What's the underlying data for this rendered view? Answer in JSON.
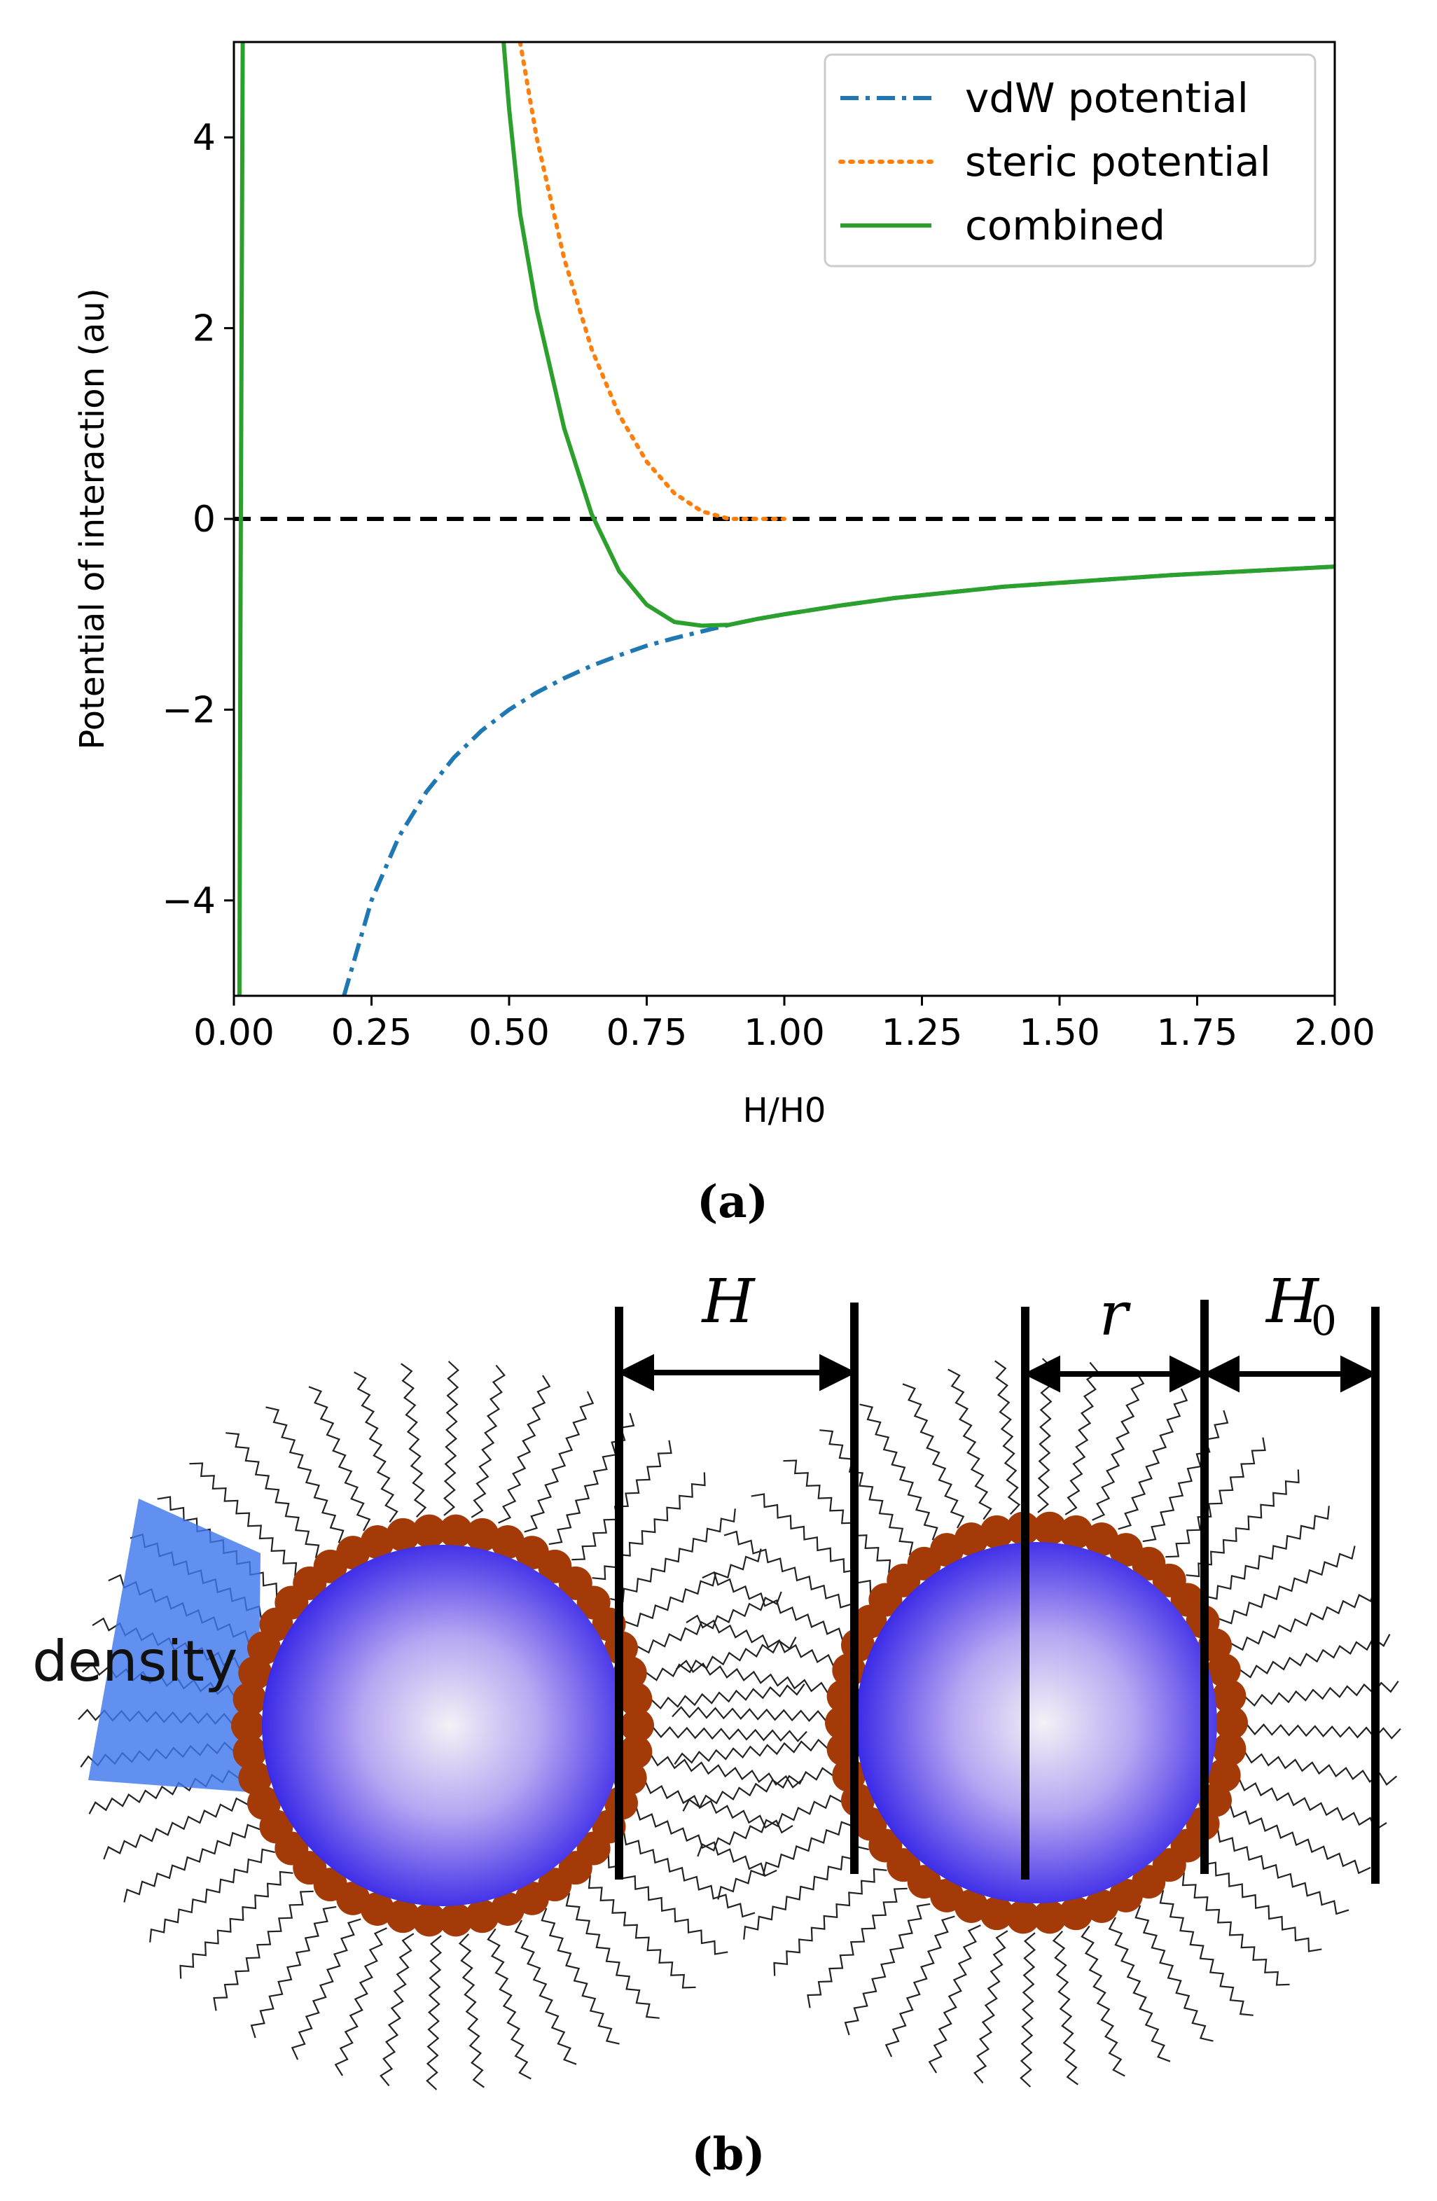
{
  "chart_data": {
    "type": "line",
    "xlabel": "H/H0",
    "ylabel": "Potential of interaction (au)",
    "xlim": [
      0.0,
      2.0
    ],
    "ylim": [
      -5,
      5
    ],
    "x_ticks": [
      "0.00",
      "0.25",
      "0.50",
      "0.75",
      "1.00",
      "1.25",
      "1.50",
      "1.75",
      "2.00"
    ],
    "y_ticks": [
      "−4",
      "−2",
      "0",
      "2",
      "4"
    ],
    "legend_position": "top-right",
    "grid": false,
    "reference_line": {
      "y": 0,
      "style": "dashed",
      "color": "#000000"
    },
    "series": [
      {
        "name": "vdW potential",
        "color": "#1f77b4",
        "style": "dashdot",
        "x": [
          0.2,
          0.25,
          0.3,
          0.35,
          0.4,
          0.45,
          0.5,
          0.55,
          0.6,
          0.65,
          0.7,
          0.75,
          0.8,
          0.85,
          0.9,
          0.95,
          1.0,
          1.1,
          1.2,
          1.3,
          1.4,
          1.5,
          1.6,
          1.7,
          1.8,
          1.9,
          2.0
        ],
        "values": [
          -5.0,
          -4.0,
          -3.33,
          -2.86,
          -2.5,
          -2.22,
          -2.0,
          -1.82,
          -1.67,
          -1.54,
          -1.43,
          -1.33,
          -1.25,
          -1.18,
          -1.11,
          -1.05,
          -1.0,
          -0.91,
          -0.83,
          -0.77,
          -0.71,
          -0.67,
          -0.63,
          -0.59,
          -0.56,
          -0.53,
          -0.5
        ]
      },
      {
        "name": "steric potential",
        "color": "#ff7f0e",
        "style": "dotted",
        "x": [
          0.52,
          0.55,
          0.6,
          0.65,
          0.7,
          0.75,
          0.8,
          0.85,
          0.9,
          0.95,
          1.0
        ],
        "values": [
          5.0,
          4.0,
          2.73,
          1.78,
          1.09,
          0.6,
          0.27,
          0.08,
          0.0,
          0.0,
          0.0
        ]
      },
      {
        "name": "combined",
        "color": "#2ca02c",
        "style": "solid",
        "x": [
          0.49,
          0.5,
          0.52,
          0.55,
          0.6,
          0.65,
          0.7,
          0.75,
          0.8,
          0.85,
          0.9,
          0.95,
          1.0,
          1.1,
          1.2,
          1.3,
          1.4,
          1.5,
          1.6,
          1.7,
          1.8,
          1.9,
          2.0
        ],
        "values": [
          5.0,
          4.3,
          3.2,
          2.2,
          0.95,
          0.05,
          -0.55,
          -0.9,
          -1.08,
          -1.12,
          -1.11,
          -1.05,
          -1.0,
          -0.91,
          -0.83,
          -0.77,
          -0.71,
          -0.67,
          -0.63,
          -0.59,
          -0.56,
          -0.53,
          -0.5
        ]
      },
      {
        "name": "combined (near-zero wall)",
        "legend": false,
        "color": "#2ca02c",
        "style": "solid",
        "x": [
          0.01,
          0.012,
          0.014,
          0.016
        ],
        "values": [
          -5.0,
          -1.0,
          2.0,
          5.0
        ]
      }
    ]
  },
  "captions": {
    "a": "(a)",
    "b": "(b)"
  },
  "schematic": {
    "labels": {
      "H": "H",
      "r": "r",
      "H0_main": "H",
      "H0_sub": "0",
      "density": "density"
    },
    "colors": {
      "particle_center": "#f4eef4",
      "particle_edge": "#2a1fe8",
      "shell_bead": "#a33a08",
      "density_wedge": "#3f78ee"
    }
  }
}
